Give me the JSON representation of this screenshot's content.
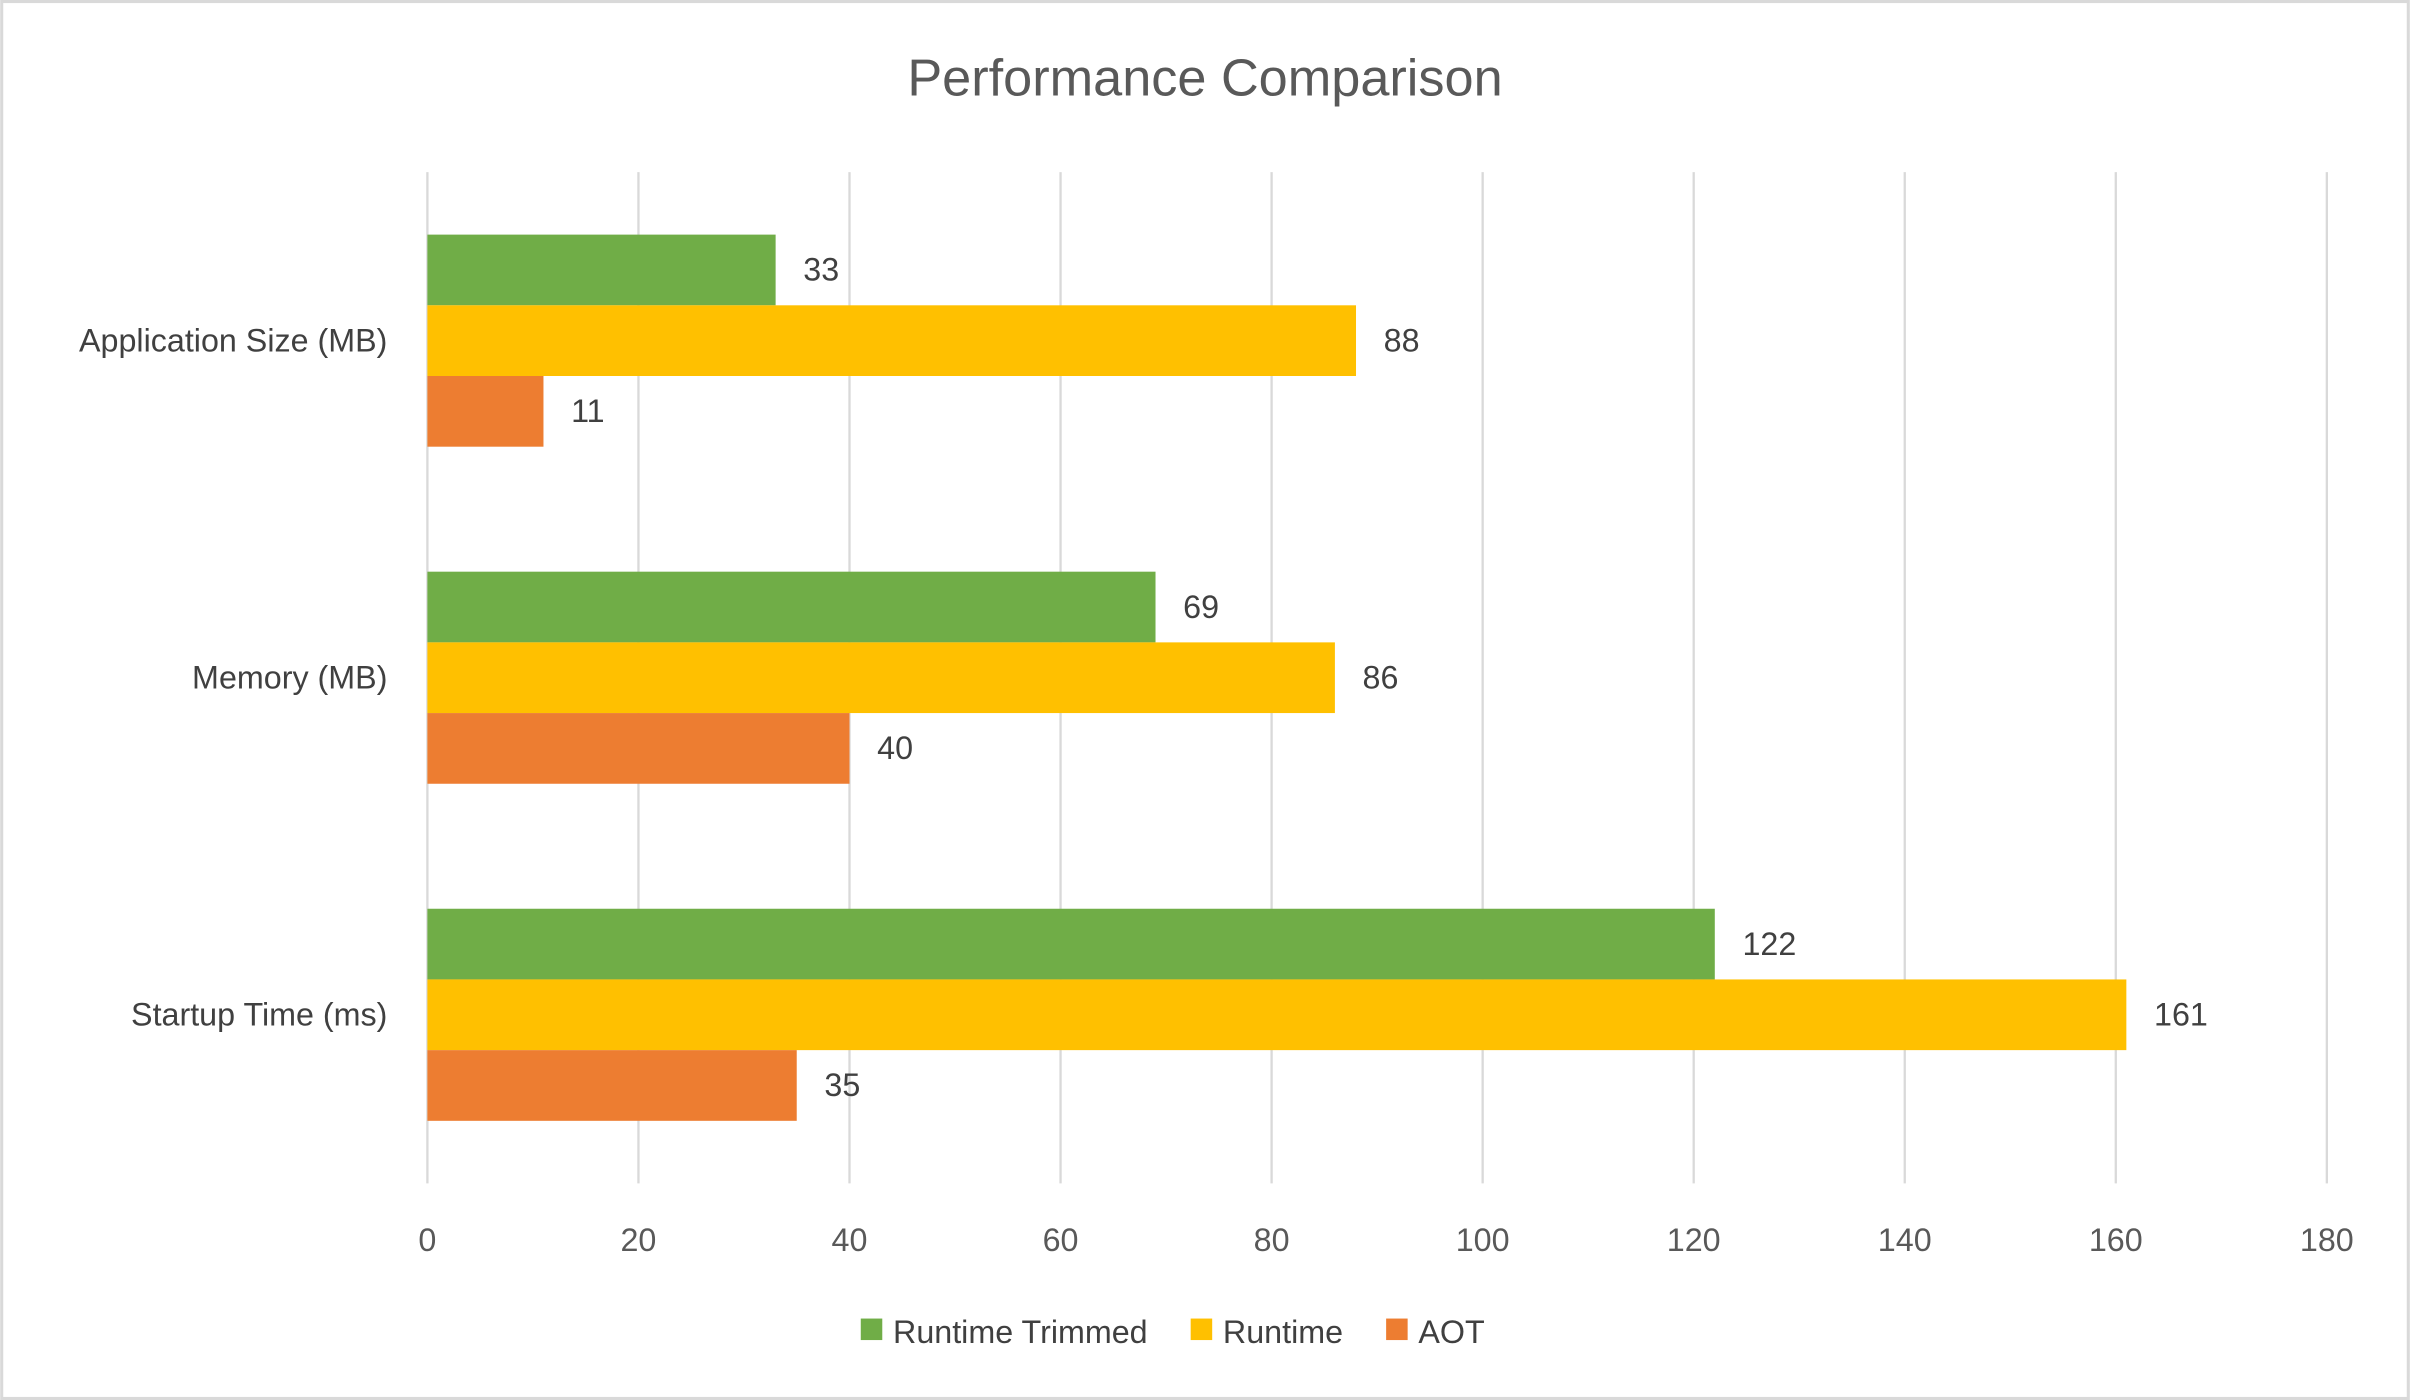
{
  "chart_data": {
    "type": "bar",
    "orientation": "horizontal",
    "title": "Performance Comparison",
    "xlabel": "",
    "ylabel": "",
    "categories": [
      "Application Size (MB)",
      "Memory (MB)",
      "Startup Time (ms)"
    ],
    "series": [
      {
        "name": "Runtime Trimmed",
        "color": "#70ad47",
        "values": [
          33,
          69,
          122
        ]
      },
      {
        "name": "Runtime",
        "color": "#ffc000",
        "values": [
          88,
          86,
          161
        ]
      },
      {
        "name": "AOT",
        "color": "#ed7d31",
        "values": [
          11,
          40,
          35
        ]
      }
    ],
    "xlim": [
      0,
      180
    ],
    "xticks": [
      0,
      20,
      40,
      60,
      80,
      100,
      120,
      140,
      160,
      180
    ],
    "grid": "vertical",
    "data_labels": true,
    "legend_position": "bottom"
  }
}
